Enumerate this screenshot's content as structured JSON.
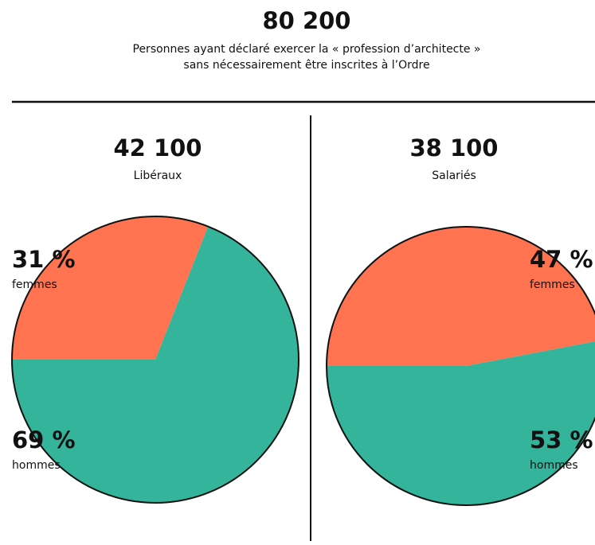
{
  "header": {
    "title": "80 200",
    "subtitle": [
      "Personnes ayant déclaré exercer la « profession d’architecte »",
      "sans nécessairement être inscrites à l’Ordre"
    ]
  },
  "chart_data": [
    {
      "type": "pie",
      "title": "42 100",
      "subtitle": "Libéraux",
      "categories": [
        "femmes",
        "hommes"
      ],
      "values": [
        31,
        69
      ],
      "value_labels": [
        "31 %",
        "69 %"
      ],
      "colors": [
        "#ff7350",
        "#34b49b"
      ]
    },
    {
      "type": "pie",
      "title": "38 100",
      "subtitle": "Salariés",
      "categories": [
        "femmes",
        "hommes"
      ],
      "values": [
        47,
        53
      ],
      "value_labels": [
        "47 %",
        "53 %"
      ],
      "colors": [
        "#ff7350",
        "#34b49b"
      ]
    }
  ]
}
